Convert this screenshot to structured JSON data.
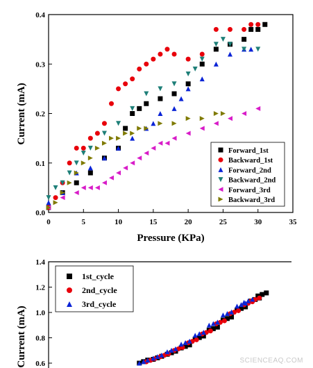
{
  "watermark": "SCIENCEAQ.COM",
  "chart_data": [
    {
      "type": "scatter",
      "xlabel": "Pressure (KPa)",
      "ylabel": "Current (mA)",
      "xlim": [
        0,
        35
      ],
      "ylim": [
        0,
        0.4
      ],
      "xticks": [
        0,
        5,
        10,
        15,
        20,
        25,
        30,
        35
      ],
      "yticks": [
        0.0,
        0.1,
        0.2,
        0.3,
        0.4
      ],
      "legend_position": "lower-right",
      "series": [
        {
          "name": "Forward_1st",
          "color": "#000000",
          "marker": "square",
          "x": [
            0,
            2,
            4,
            6,
            8,
            10,
            11,
            12,
            13,
            14,
            16,
            18,
            20,
            22,
            24,
            26,
            28,
            29,
            30,
            31
          ],
          "y": [
            0.01,
            0.04,
            0.06,
            0.08,
            0.11,
            0.13,
            0.17,
            0.2,
            0.21,
            0.22,
            0.23,
            0.24,
            0.26,
            0.3,
            0.33,
            0.34,
            0.35,
            0.37,
            0.37,
            0.38
          ]
        },
        {
          "name": "Backward_1st",
          "color": "#e8000b",
          "marker": "circle",
          "x": [
            0,
            1,
            2,
            3,
            4,
            5,
            6,
            7,
            8,
            9,
            10,
            11,
            12,
            13,
            14,
            15,
            16,
            17,
            18,
            20,
            22,
            24,
            26,
            28,
            29,
            30
          ],
          "y": [
            0.01,
            0.03,
            0.06,
            0.1,
            0.13,
            0.13,
            0.15,
            0.16,
            0.18,
            0.22,
            0.25,
            0.26,
            0.27,
            0.29,
            0.3,
            0.31,
            0.32,
            0.33,
            0.32,
            0.31,
            0.32,
            0.37,
            0.37,
            0.37,
            0.38,
            0.38
          ]
        },
        {
          "name": "Forward_2nd",
          "color": "#0b24d6",
          "marker": "triangle-up",
          "x": [
            0,
            2,
            4,
            6,
            8,
            10,
            12,
            14,
            15,
            16,
            18,
            19,
            20,
            22,
            24,
            26,
            28,
            29
          ],
          "y": [
            0.02,
            0.04,
            0.08,
            0.09,
            0.11,
            0.13,
            0.15,
            0.17,
            0.18,
            0.2,
            0.21,
            0.23,
            0.25,
            0.27,
            0.3,
            0.32,
            0.33,
            0.33
          ]
        },
        {
          "name": "Backward_2nd",
          "color": "#1e7f78",
          "marker": "triangle-down",
          "x": [
            0,
            1,
            2,
            3,
            4,
            5,
            6,
            8,
            10,
            12,
            14,
            16,
            18,
            20,
            21,
            22,
            24,
            25,
            26,
            28,
            30
          ],
          "y": [
            0.03,
            0.05,
            0.06,
            0.08,
            0.1,
            0.12,
            0.13,
            0.16,
            0.18,
            0.21,
            0.24,
            0.25,
            0.26,
            0.28,
            0.29,
            0.31,
            0.34,
            0.35,
            0.34,
            0.33,
            0.33
          ]
        },
        {
          "name": "Forward_3rd",
          "color": "#d81cc8",
          "marker": "triangle-left",
          "x": [
            0,
            2,
            4,
            5,
            6,
            7,
            8,
            9,
            10,
            11,
            12,
            13,
            14,
            15,
            16,
            17,
            18,
            20,
            22,
            24,
            26,
            28,
            30
          ],
          "y": [
            0.01,
            0.03,
            0.04,
            0.05,
            0.05,
            0.05,
            0.06,
            0.07,
            0.08,
            0.09,
            0.1,
            0.11,
            0.12,
            0.13,
            0.14,
            0.14,
            0.15,
            0.16,
            0.17,
            0.18,
            0.19,
            0.2,
            0.21
          ]
        },
        {
          "name": "Backward_3rd",
          "color": "#7f7a00",
          "marker": "triangle-right",
          "x": [
            0,
            1,
            2,
            3,
            4,
            5,
            6,
            7,
            8,
            9,
            10,
            11,
            12,
            13,
            14,
            16,
            18,
            20,
            22,
            24,
            25
          ],
          "y": [
            0.01,
            0.02,
            0.04,
            0.06,
            0.08,
            0.1,
            0.11,
            0.13,
            0.14,
            0.15,
            0.15,
            0.16,
            0.16,
            0.17,
            0.17,
            0.18,
            0.18,
            0.19,
            0.19,
            0.2,
            0.2
          ]
        }
      ]
    },
    {
      "type": "scatter",
      "ylabel": "Current (mA)",
      "ylim": [
        0.6,
        1.4
      ],
      "yticks": [
        0.6,
        0.8,
        1.0,
        1.2,
        1.4
      ],
      "legend_position": "top-left",
      "series": [
        {
          "name": "1st_cycle",
          "color": "#000000",
          "marker": "square",
          "x": [
            13,
            15,
            17,
            19,
            21,
            23,
            25,
            27,
            29,
            30
          ],
          "y": [
            0.6,
            0.63,
            0.67,
            0.72,
            0.79,
            0.86,
            0.94,
            1.02,
            1.09,
            1.13
          ]
        },
        {
          "name": "2nd_cycle",
          "color": "#e8000b",
          "marker": "circle",
          "x": [
            14,
            16,
            18,
            20,
            22,
            24,
            26,
            28,
            29
          ],
          "y": [
            0.61,
            0.65,
            0.7,
            0.76,
            0.83,
            0.91,
            0.99,
            1.06,
            1.09
          ]
        },
        {
          "name": "3rd_cycle",
          "color": "#0b24d6",
          "marker": "triangle-up",
          "x": [
            13,
            15,
            17,
            19,
            21,
            23,
            25,
            27,
            28
          ],
          "y": [
            0.6,
            0.64,
            0.69,
            0.75,
            0.82,
            0.9,
            0.98,
            1.05,
            1.08
          ]
        }
      ]
    }
  ]
}
